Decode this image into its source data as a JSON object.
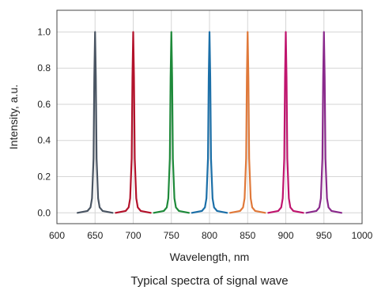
{
  "caption": "Typical spectra of signal wave",
  "chart_data": {
    "type": "line",
    "title": "",
    "xlabel": "Wavelength, nm",
    "ylabel": "Intensity, a.u.",
    "xlim": [
      600,
      1000
    ],
    "ylim": [
      -0.06,
      1.12
    ],
    "x_ticks": [
      600,
      650,
      700,
      750,
      800,
      850,
      900,
      950,
      1000
    ],
    "y_ticks": [
      0.0,
      0.2,
      0.4,
      0.6,
      0.8,
      1.0
    ],
    "x_tick_labels": [
      "600",
      "650",
      "700",
      "750",
      "800",
      "850",
      "900",
      "950",
      "1000"
    ],
    "y_tick_labels": [
      "0.0",
      "0.2",
      "0.4",
      "0.6",
      "0.8",
      "1.0"
    ],
    "grid": true,
    "legend": "none",
    "series": [
      {
        "center": 650,
        "color": "#4a5563",
        "x": [
          627,
          640,
          644,
          646,
          648,
          649,
          650,
          651,
          652,
          654,
          656,
          660,
          673
        ],
        "y": [
          0.0,
          0.01,
          0.03,
          0.08,
          0.3,
          0.75,
          1.0,
          0.75,
          0.3,
          0.08,
          0.03,
          0.01,
          0.0
        ]
      },
      {
        "center": 700,
        "color": "#b3122b",
        "x": [
          677,
          690,
          694,
          696,
          698,
          699,
          700,
          701,
          702,
          704,
          706,
          710,
          723
        ],
        "y": [
          0.0,
          0.01,
          0.03,
          0.08,
          0.3,
          0.75,
          1.0,
          0.75,
          0.3,
          0.08,
          0.03,
          0.01,
          0.0
        ]
      },
      {
        "center": 750,
        "color": "#1e8a3a",
        "x": [
          727,
          740,
          744,
          746,
          748,
          749,
          750,
          751,
          752,
          754,
          756,
          760,
          773
        ],
        "y": [
          0.0,
          0.01,
          0.03,
          0.08,
          0.3,
          0.75,
          1.0,
          0.75,
          0.3,
          0.08,
          0.03,
          0.01,
          0.0
        ]
      },
      {
        "center": 800,
        "color": "#1b6fa8",
        "x": [
          777,
          790,
          794,
          796,
          798,
          799,
          800,
          801,
          802,
          804,
          806,
          810,
          823
        ],
        "y": [
          0.0,
          0.01,
          0.03,
          0.08,
          0.3,
          0.75,
          1.0,
          0.75,
          0.3,
          0.08,
          0.03,
          0.01,
          0.0
        ]
      },
      {
        "center": 850,
        "color": "#e0793a",
        "x": [
          827,
          840,
          844,
          846,
          848,
          849,
          850,
          851,
          852,
          854,
          856,
          860,
          873
        ],
        "y": [
          0.0,
          0.01,
          0.03,
          0.08,
          0.3,
          0.75,
          1.0,
          0.75,
          0.3,
          0.08,
          0.03,
          0.01,
          0.0
        ]
      },
      {
        "center": 900,
        "color": "#c0156e",
        "x": [
          877,
          890,
          894,
          896,
          898,
          899,
          900,
          901,
          902,
          904,
          906,
          910,
          923
        ],
        "y": [
          0.0,
          0.01,
          0.03,
          0.08,
          0.3,
          0.75,
          1.0,
          0.75,
          0.3,
          0.08,
          0.03,
          0.01,
          0.0
        ]
      },
      {
        "center": 950,
        "color": "#8a2a8c",
        "x": [
          927,
          940,
          944,
          946,
          948,
          949,
          950,
          951,
          952,
          954,
          956,
          960,
          973
        ],
        "y": [
          0.0,
          0.01,
          0.03,
          0.08,
          0.3,
          0.75,
          1.0,
          0.75,
          0.3,
          0.08,
          0.03,
          0.01,
          0.0
        ]
      }
    ]
  }
}
